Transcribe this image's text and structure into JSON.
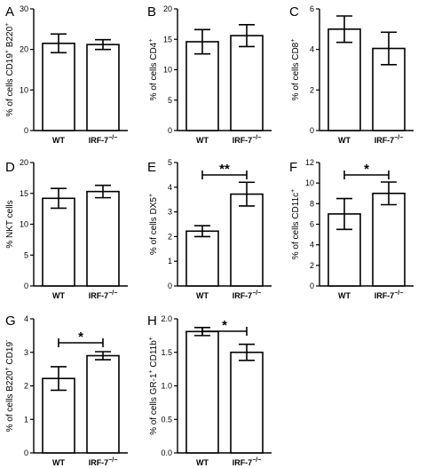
{
  "figure": {
    "categories": [
      "WT",
      "IRF-7"
    ],
    "categories_superscript": [
      "",
      "−/−"
    ]
  },
  "chart_data": [
    {
      "panel": "A",
      "type": "bar",
      "categories": [
        "WT",
        "IRF-7−/−"
      ],
      "ylabel": "% of cells CD19+ B220+",
      "ylabel_main": "% of cells CD19",
      "ylabel_sup1": "+",
      "ylabel_mid": " B220",
      "ylabel_sup2": "+",
      "ylim": [
        0,
        30
      ],
      "ticks": [
        0,
        10,
        20,
        30
      ],
      "tick_labels": [
        "0",
        "10",
        "20",
        "30"
      ],
      "values": [
        21.5,
        21.2
      ],
      "errors": [
        2.3,
        1.2
      ],
      "significance": null
    },
    {
      "panel": "B",
      "type": "bar",
      "categories": [
        "WT",
        "IRF-7−/−"
      ],
      "ylabel": "% of cells CD4+",
      "ylabel_main": "% of cells CD4",
      "ylabel_sup1": "+",
      "ylabel_mid": "",
      "ylabel_sup2": "",
      "ylim": [
        0,
        20
      ],
      "ticks": [
        0,
        5,
        10,
        15,
        20
      ],
      "tick_labels": [
        "0",
        "5",
        "10",
        "15",
        "20"
      ],
      "values": [
        14.6,
        15.6
      ],
      "errors": [
        2.0,
        1.8
      ],
      "significance": null
    },
    {
      "panel": "C",
      "type": "bar",
      "categories": [
        "WT",
        "IRF-7−/−"
      ],
      "ylabel": "% of cells CD8+",
      "ylabel_main": "% of cells CD8",
      "ylabel_sup1": "+",
      "ylabel_mid": "",
      "ylabel_sup2": "",
      "ylim": [
        0,
        6
      ],
      "ticks": [
        0,
        2,
        4,
        6
      ],
      "tick_labels": [
        "0",
        "2",
        "4",
        "6"
      ],
      "values": [
        5.0,
        4.05
      ],
      "errors": [
        0.65,
        0.8
      ],
      "significance": null
    },
    {
      "panel": "D",
      "type": "bar",
      "categories": [
        "WT",
        "IRF-7−/−"
      ],
      "ylabel": "% NKT cells",
      "ylabel_main": "% NKT cells",
      "ylabel_sup1": "",
      "ylabel_mid": "",
      "ylabel_sup2": "",
      "ylim": [
        0,
        20
      ],
      "ticks": [
        0,
        5,
        10,
        15,
        20
      ],
      "tick_labels": [
        "0",
        "5",
        "10",
        "15",
        "20"
      ],
      "values": [
        14.2,
        15.3
      ],
      "errors": [
        1.6,
        1.0
      ],
      "significance": null
    },
    {
      "panel": "E",
      "type": "bar",
      "categories": [
        "WT",
        "IRF-7−/−"
      ],
      "ylabel": "% of cells DX5+",
      "ylabel_main": "% of cells DX5",
      "ylabel_sup1": "+",
      "ylabel_mid": "",
      "ylabel_sup2": "",
      "ylim": [
        0,
        5
      ],
      "ticks": [
        0,
        1,
        2,
        3,
        4,
        5
      ],
      "tick_labels": [
        "0",
        "1",
        "2",
        "3",
        "4",
        "5"
      ],
      "values": [
        2.22,
        3.72
      ],
      "errors": [
        0.22,
        0.48
      ],
      "significance": "**"
    },
    {
      "panel": "F",
      "type": "bar",
      "categories": [
        "WT",
        "IRF-7−/−"
      ],
      "ylabel": "% of cells CD11c+",
      "ylabel_main": "% of cells CD11c",
      "ylabel_sup1": "+",
      "ylabel_mid": "",
      "ylabel_sup2": "",
      "ylim": [
        0,
        12
      ],
      "ticks": [
        0,
        2,
        4,
        6,
        8,
        10,
        12
      ],
      "tick_labels": [
        "0",
        "2",
        "4",
        "6",
        "8",
        "10",
        "12"
      ],
      "values": [
        7.0,
        9.0
      ],
      "errors": [
        1.5,
        1.1
      ],
      "significance": "*"
    },
    {
      "panel": "G",
      "type": "bar",
      "categories": [
        "WT",
        "IRF-7−/−"
      ],
      "ylabel": "% of cells B220+ CD19−",
      "ylabel_main": "% of cells B220",
      "ylabel_sup1": "+",
      "ylabel_mid": " CD19",
      "ylabel_sup2": "-",
      "ylim": [
        0,
        4
      ],
      "ticks": [
        0,
        1,
        2,
        3,
        4
      ],
      "tick_labels": [
        "0",
        "1",
        "2",
        "3",
        "4"
      ],
      "values": [
        2.22,
        2.9
      ],
      "errors": [
        0.35,
        0.12
      ],
      "significance": "*"
    },
    {
      "panel": "H",
      "type": "bar",
      "categories": [
        "WT",
        "IRF-7−/−"
      ],
      "ylabel": "% of cells GR-1+ CD11b+",
      "ylabel_main": "% of cells GR-1",
      "ylabel_sup1": "+",
      "ylabel_mid": " CD11b",
      "ylabel_sup2": "+",
      "ylim": [
        0,
        2.0
      ],
      "ticks": [
        0,
        0.5,
        1.0,
        1.5,
        2.0
      ],
      "tick_labels": [
        "0.0",
        "0.5",
        "1.0",
        "1.5",
        "2.0"
      ],
      "values": [
        1.81,
        1.5
      ],
      "errors": [
        0.06,
        0.12
      ],
      "significance": "*"
    }
  ]
}
